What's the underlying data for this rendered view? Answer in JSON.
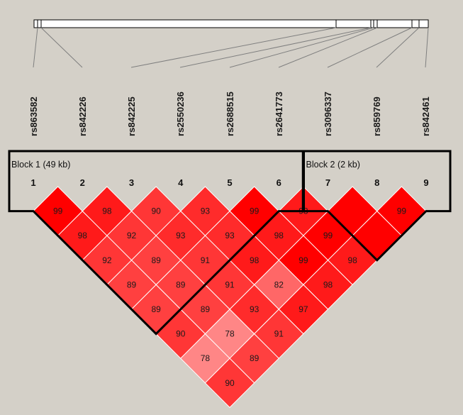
{
  "snps": [
    {
      "index": "1",
      "name": "rs863582"
    },
    {
      "index": "2",
      "name": "rs842226"
    },
    {
      "index": "3",
      "name": "rs842225"
    },
    {
      "index": "4",
      "name": "rs2550236"
    },
    {
      "index": "5",
      "name": "rs2688515"
    },
    {
      "index": "6",
      "name": "rs2641773"
    },
    {
      "index": "7",
      "name": "rs3096337"
    },
    {
      "index": "8",
      "name": "rs859769"
    },
    {
      "index": "9",
      "name": "rs842461"
    }
  ],
  "blocks": [
    {
      "label": "Block 1 (49 kb)",
      "from": 1,
      "to": 6
    },
    {
      "label": "Block 2 (2 kb)",
      "from": 7,
      "to": 9
    }
  ],
  "chart_data": {
    "type": "heatmap",
    "measure": "D'",
    "matrix_rows": [
      [
        "99",
        "98",
        "90",
        "93",
        "99",
        "98",
        "",
        "99"
      ],
      [
        "98",
        "92",
        "93",
        "93",
        "98",
        "99",
        ""
      ],
      [
        "92",
        "89",
        "91",
        "98",
        "99",
        "98"
      ],
      [
        "89",
        "89",
        "91",
        "82",
        "98"
      ],
      [
        "89",
        "89",
        "93",
        "97"
      ],
      [
        "90",
        "78",
        "91"
      ],
      [
        "78",
        "89"
      ],
      [
        "90"
      ]
    ],
    "row_note": "row k holds pairs (i, i+k) for i = 1..9-k; empty string = cell without printed value",
    "colors": {
      "high": "#ff0000",
      "background": "#d4d0c8",
      "outline": "#000000"
    }
  }
}
